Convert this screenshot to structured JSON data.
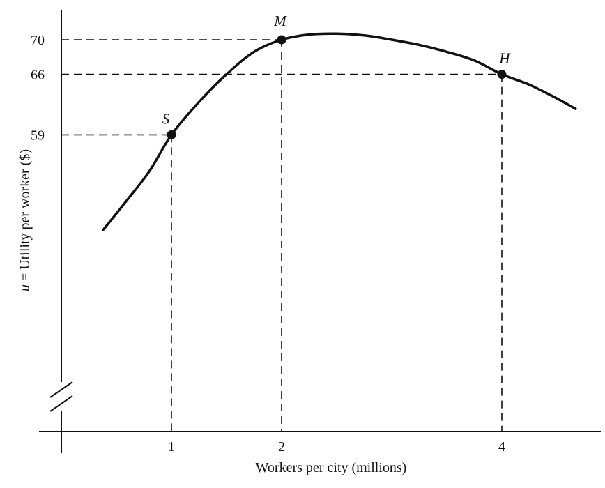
{
  "chart_data": {
    "type": "line",
    "xlabel": "Workers per city (millions)",
    "ylabel": "u = Utility per worker ($)",
    "ylabel_var": "u",
    "ylabel_rest": " = Utility per worker ($)",
    "x_ticks": [
      "1",
      "2",
      "4"
    ],
    "y_ticks": [
      "59",
      "66",
      "70"
    ],
    "axis_break": true,
    "grid": false,
    "series": [
      {
        "x": [
          0.38,
          0.6,
          0.8,
          1.0,
          1.25,
          1.5,
          1.75,
          2.0,
          2.25,
          2.5,
          2.75,
          3.0,
          3.25,
          3.5,
          3.75,
          4.0,
          4.25,
          4.5,
          4.67
        ],
        "y": [
          48.0,
          51.5,
          54.8,
          59.0,
          62.8,
          66.0,
          68.6,
          70.0,
          70.6,
          70.7,
          70.5,
          70.0,
          69.4,
          68.6,
          67.6,
          66.0,
          64.8,
          63.2,
          62.0
        ]
      }
    ],
    "points": [
      {
        "label": "S",
        "x": 1,
        "y": 59
      },
      {
        "label": "M",
        "x": 2,
        "y": 70
      },
      {
        "label": "H",
        "x": 4,
        "y": 66
      }
    ]
  }
}
